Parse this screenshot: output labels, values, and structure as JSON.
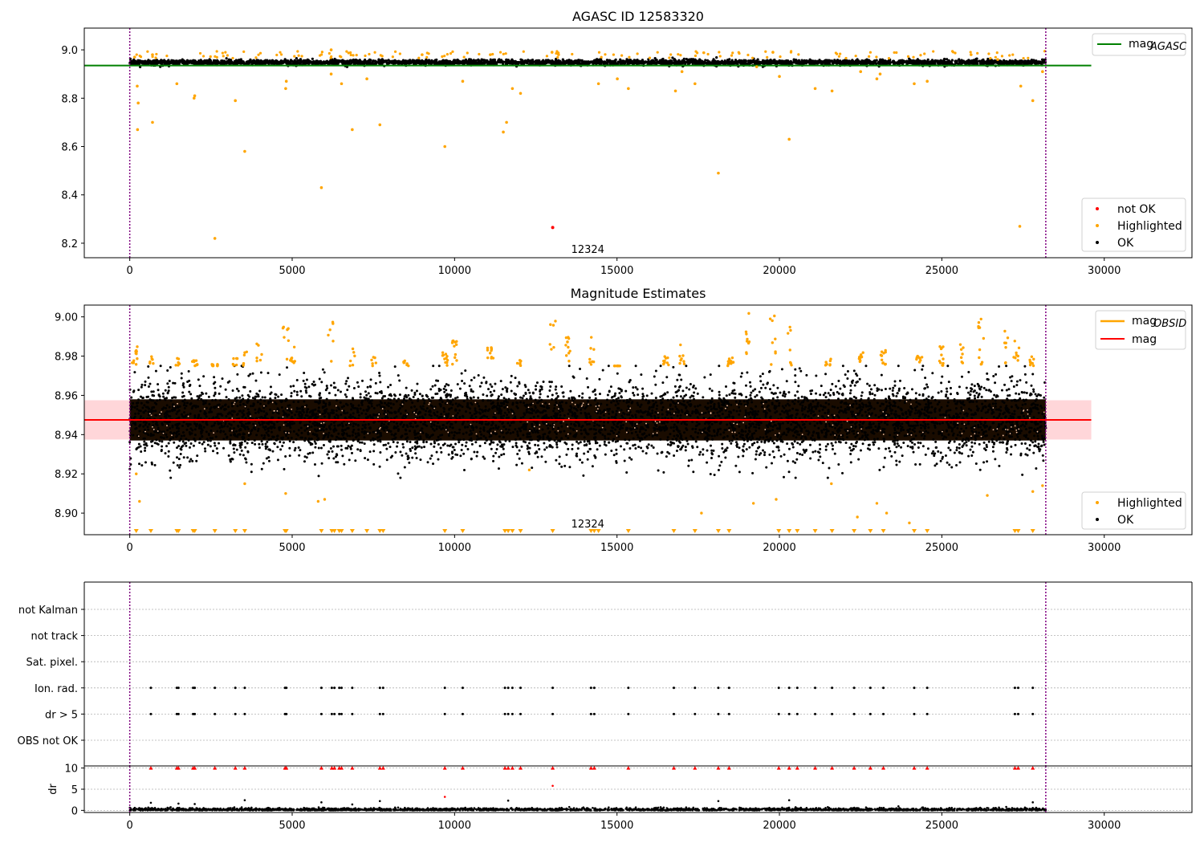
{
  "colors": {
    "ok": "#000000",
    "highlighted": "#ffa500",
    "not_ok": "#ff0000",
    "mag_agasc": "#008000",
    "mag_obsid": "#ffa500",
    "mag": "#ff0000",
    "mag_band": "#ffd6d9",
    "obs_boundary": "#800080",
    "grid": "#b0b0b0"
  },
  "chart_data": [
    {
      "type": "scatter",
      "title": "AGASC ID 12583320",
      "xlim": [
        -1400,
        32700
      ],
      "ylim": [
        8.14,
        9.09
      ],
      "xticks": [
        0,
        5000,
        10000,
        15000,
        20000,
        25000,
        30000
      ],
      "yticks": [
        8.2,
        8.4,
        8.6,
        8.8,
        9.0
      ],
      "xticklabels": [
        "0",
        "5000",
        "10000",
        "15000",
        "20000",
        "25000",
        "30000"
      ],
      "yticklabels": [
        "8.2",
        "8.4",
        "8.6",
        "8.8",
        "9.0"
      ],
      "grid": false,
      "legend_upper": {
        "position": "top-right",
        "entries": [
          {
            "label": "mag",
            "sub": "AGASC",
            "kind": "line",
            "color": "#008000"
          }
        ]
      },
      "legend_lower": {
        "position": "bottom-right",
        "entries": [
          {
            "label": "not OK",
            "kind": "point",
            "color": "#ff0000"
          },
          {
            "label": "Highlighted",
            "kind": "point",
            "color": "#ffa500"
          },
          {
            "label": "OK",
            "kind": "point",
            "color": "#000000"
          }
        ]
      },
      "obsid_annotation": "12324",
      "obsid_annotation_pos": [
        14100,
        8.16
      ],
      "obs_boundaries": [
        0,
        28200
      ],
      "data_extent": [
        0,
        28200
      ],
      "mag_agasc": 8.935,
      "ok_band": {
        "center": 8.948,
        "spread": 0.012,
        "min": 8.925,
        "max": 8.975
      },
      "highlighted_points": [
        [
          150,
          8.97
        ],
        [
          230,
          8.85
        ],
        [
          260,
          8.78
        ],
        [
          240,
          8.67
        ],
        [
          700,
          8.7
        ],
        [
          1450,
          8.86
        ],
        [
          1980,
          8.8
        ],
        [
          2000,
          8.81
        ],
        [
          2620,
          8.22
        ],
        [
          3250,
          8.79
        ],
        [
          3540,
          8.58
        ],
        [
          4800,
          8.84
        ],
        [
          4820,
          8.87
        ],
        [
          5900,
          8.43
        ],
        [
          6200,
          8.9
        ],
        [
          6520,
          8.86
        ],
        [
          6850,
          8.67
        ],
        [
          7300,
          8.88
        ],
        [
          7700,
          8.69
        ],
        [
          9700,
          8.6
        ],
        [
          10250,
          8.87
        ],
        [
          11600,
          8.7
        ],
        [
          11500,
          8.66
        ],
        [
          11780,
          8.84
        ],
        [
          12030,
          8.82
        ],
        [
          14430,
          8.86
        ],
        [
          15010,
          8.88
        ],
        [
          15350,
          8.84
        ],
        [
          16800,
          8.83
        ],
        [
          17400,
          8.86
        ],
        [
          18120,
          8.49
        ],
        [
          19300,
          8.93
        ],
        [
          20000,
          8.89
        ],
        [
          20300,
          8.63
        ],
        [
          21100,
          8.84
        ],
        [
          21620,
          8.83
        ],
        [
          23000,
          8.88
        ],
        [
          23100,
          8.9
        ],
        [
          24150,
          8.86
        ],
        [
          24550,
          8.87
        ],
        [
          26720,
          8.96
        ],
        [
          27400,
          8.27
        ],
        [
          27430,
          8.85
        ],
        [
          27800,
          8.79
        ],
        [
          28100,
          8.91
        ],
        [
          13000,
          8.99
        ],
        [
          6200,
          9.0
        ],
        [
          17000,
          8.91
        ],
        [
          19800,
          8.99
        ],
        [
          22500,
          8.91
        ],
        [
          11100,
          8.98
        ],
        [
          9000,
          8.98
        ],
        [
          25900,
          8.98
        ],
        [
          13200,
          8.98
        ],
        [
          700,
          8.98
        ]
      ],
      "not_ok_points": [
        [
          13020,
          8.265
        ]
      ]
    },
    {
      "type": "scatter",
      "title": "Magnitude Estimates",
      "xlim": [
        -1400,
        32700
      ],
      "ylim": [
        8.889,
        9.006
      ],
      "xticks": [
        0,
        5000,
        10000,
        15000,
        20000,
        25000,
        30000
      ],
      "yticks": [
        8.9,
        8.92,
        8.94,
        8.96,
        8.98,
        9.0
      ],
      "xticklabels": [
        "0",
        "5000",
        "10000",
        "15000",
        "20000",
        "25000",
        "30000"
      ],
      "yticklabels": [
        "8.90",
        "8.92",
        "8.94",
        "8.96",
        "8.98",
        "9.00"
      ],
      "grid": false,
      "legend_upper": {
        "position": "top-right",
        "entries": [
          {
            "label": "mag",
            "sub": "OBSID",
            "kind": "line",
            "color": "#ffa500"
          },
          {
            "label": "mag",
            "kind": "line",
            "color": "#ff0000"
          }
        ]
      },
      "legend_lower": {
        "position": "bottom-right",
        "entries": [
          {
            "label": "Highlighted",
            "kind": "point",
            "color": "#ffa500"
          },
          {
            "label": "OK",
            "kind": "point",
            "color": "#000000"
          }
        ]
      },
      "obsid_annotation": "12324",
      "obsid_annotation_pos": [
        14100,
        8.893
      ],
      "obs_boundaries": [
        0,
        28200
      ],
      "data_extent": [
        0,
        28200
      ],
      "mag": 8.9475,
      "mag_band": [
        8.9375,
        8.9575
      ],
      "mag_obsid": 8.9475,
      "ok_band": {
        "center": 8.9475,
        "spread": 0.01,
        "min": 8.918,
        "max": 8.975
      },
      "clipped_low_marker_x": [
        200,
        650,
        1450,
        1500,
        1950,
        2000,
        2620,
        3250,
        3540,
        4780,
        4820,
        5900,
        6220,
        6300,
        6450,
        6520,
        6850,
        7300,
        7700,
        7800,
        9700,
        10250,
        11550,
        11650,
        11780,
        12030,
        13020,
        14200,
        14300,
        14430,
        15350,
        16750,
        17400,
        18120,
        18450,
        19980,
        20300,
        20550,
        21100,
        21620,
        22300,
        22800,
        23200,
        24150,
        24550,
        27250,
        27350,
        27800
      ],
      "highlight_clusters": [
        [
          150,
          8.985
        ],
        [
          700,
          8.981
        ],
        [
          1450,
          8.979
        ],
        [
          2000,
          8.978
        ],
        [
          2620,
          8.976
        ],
        [
          3250,
          8.979
        ],
        [
          3540,
          8.983
        ],
        [
          4000,
          8.987
        ],
        [
          4800,
          8.995
        ],
        [
          5000,
          8.985
        ],
        [
          6200,
          9.005
        ],
        [
          6850,
          8.985
        ],
        [
          7500,
          8.981
        ],
        [
          8500,
          8.978
        ],
        [
          9700,
          8.991
        ],
        [
          10000,
          8.988
        ],
        [
          11100,
          8.985
        ],
        [
          12000,
          8.978
        ],
        [
          13020,
          9.002
        ],
        [
          13500,
          8.99
        ],
        [
          14200,
          8.991
        ],
        [
          15000,
          8.975
        ],
        [
          16500,
          8.98
        ],
        [
          17000,
          8.99
        ],
        [
          18500,
          8.98
        ],
        [
          19000,
          9.002
        ],
        [
          19800,
          9.001
        ],
        [
          20300,
          8.999
        ],
        [
          21500,
          8.979
        ],
        [
          22500,
          8.982
        ],
        [
          23200,
          8.984
        ],
        [
          24300,
          8.981
        ],
        [
          25000,
          8.985
        ],
        [
          25600,
          8.986
        ],
        [
          26200,
          9.001
        ],
        [
          27000,
          8.996
        ],
        [
          27300,
          8.989
        ],
        [
          27800,
          8.98
        ]
      ],
      "highlight_low": [
        [
          200,
          8.92
        ],
        [
          300,
          8.906
        ],
        [
          3540,
          8.915
        ],
        [
          4800,
          8.91
        ],
        [
          5800,
          8.906
        ],
        [
          6000,
          8.907
        ],
        [
          12300,
          8.922
        ],
        [
          17600,
          8.9
        ],
        [
          19200,
          8.905
        ],
        [
          19900,
          8.907
        ],
        [
          21600,
          8.915
        ],
        [
          22400,
          8.898
        ],
        [
          23000,
          8.905
        ],
        [
          23300,
          8.9
        ],
        [
          24000,
          8.895
        ],
        [
          26400,
          8.909
        ],
        [
          27800,
          8.911
        ],
        [
          28100,
          8.914
        ]
      ]
    },
    {
      "type": "scatter",
      "title": "",
      "xlim": [
        -1400,
        32700
      ],
      "categories": [
        "OBS not OK",
        "dr > 5",
        "Ion. rad.",
        "Sat. pixel.",
        "not track",
        "not Kalman"
      ],
      "grid": true,
      "obs_boundaries": [
        0,
        28200
      ],
      "flag_x": [
        650,
        1450,
        1500,
        1950,
        2000,
        2620,
        3250,
        3540,
        4780,
        4820,
        5900,
        6220,
        6300,
        6450,
        6520,
        6850,
        7700,
        7800,
        9700,
        10250,
        11550,
        11650,
        11780,
        12030,
        13020,
        14200,
        14300,
        15350,
        16750,
        17400,
        18120,
        18450,
        19980,
        20300,
        20550,
        21100,
        21620,
        22300,
        22800,
        23200,
        24150,
        24550,
        27250,
        27350,
        27800
      ],
      "flag_rows": [
        "dr > 5",
        "Ion. rad."
      ]
    },
    {
      "type": "scatter",
      "title": "",
      "ylabel": "dr",
      "xlim": [
        -1400,
        32700
      ],
      "ylim": [
        -0.5,
        10.5
      ],
      "yticks": [
        0,
        5,
        10
      ],
      "yticklabels": [
        "0",
        "5",
        "10"
      ],
      "xticks": [
        0,
        5000,
        10000,
        15000,
        20000,
        25000,
        30000
      ],
      "xticklabels": [
        "0",
        "5000",
        "10000",
        "15000",
        "20000",
        "25000",
        "30000"
      ],
      "grid": true,
      "obs_boundaries": [
        0,
        28200
      ],
      "dr_ok_max": 1.0,
      "dr_clipped_value": 10,
      "dr_mid_points": [
        [
          650,
          1.8
        ],
        [
          1500,
          1.6
        ],
        [
          2000,
          1.5
        ],
        [
          3540,
          2.4
        ],
        [
          5900,
          1.9
        ],
        [
          6850,
          1.4
        ],
        [
          7700,
          2.2
        ],
        [
          9700,
          3.2
        ],
        [
          11650,
          2.3
        ],
        [
          13020,
          5.8
        ],
        [
          18120,
          2.2
        ],
        [
          20300,
          2.4
        ],
        [
          27800,
          1.9
        ]
      ]
    }
  ]
}
